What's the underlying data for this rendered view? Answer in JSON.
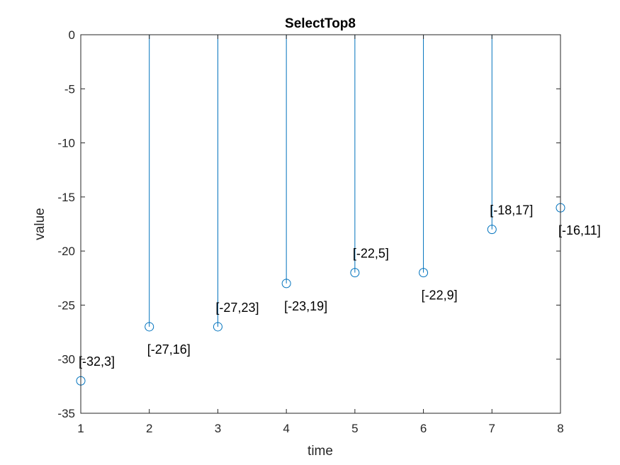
{
  "chart_data": {
    "type": "stem",
    "title": "SelectTop8",
    "xlabel": "time",
    "ylabel": "value",
    "xlim": [
      1,
      8
    ],
    "ylim": [
      -35,
      0
    ],
    "xticks": [
      "1",
      "2",
      "3",
      "4",
      "5",
      "6",
      "7",
      "8"
    ],
    "yticks": [
      "0",
      "-5",
      "-10",
      "-15",
      "-20",
      "-25",
      "-30",
      "-35"
    ],
    "grid": false,
    "baseline": 0,
    "series": [
      {
        "color": "#0072BD",
        "marker": "circle",
        "x": [
          1,
          2,
          3,
          4,
          5,
          6,
          7,
          8
        ],
        "values": [
          -32,
          -27,
          -27,
          -23,
          -22,
          -22,
          -18,
          -16
        ]
      }
    ],
    "annotations": [
      {
        "x": 1,
        "y": -32,
        "text": "[-32,3]",
        "side": "above"
      },
      {
        "x": 2,
        "y": -27,
        "text": "[-27,16]",
        "side": "below"
      },
      {
        "x": 3,
        "y": -27,
        "text": "[-27,23]",
        "side": "above"
      },
      {
        "x": 4,
        "y": -23,
        "text": "[-23,19]",
        "side": "below"
      },
      {
        "x": 5,
        "y": -22,
        "text": "[-22,5]",
        "side": "above"
      },
      {
        "x": 6,
        "y": -22,
        "text": "[-22,9]",
        "side": "below"
      },
      {
        "x": 7,
        "y": -18,
        "text": "[-18,17]",
        "side": "above"
      },
      {
        "x": 8,
        "y": -16,
        "text": "[-16,11]",
        "side": "below"
      }
    ]
  }
}
